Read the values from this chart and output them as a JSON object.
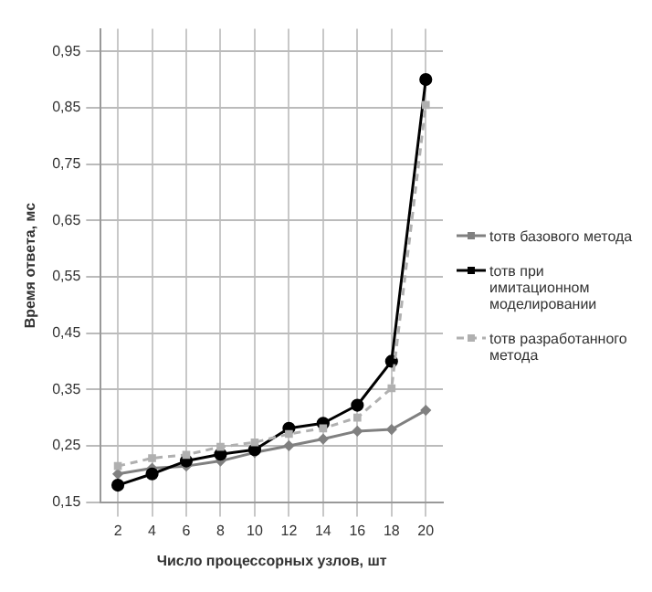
{
  "chart_data": {
    "type": "line",
    "xlabel": "Число процессорных узлов, шт",
    "ylabel": "Время ответа, мс",
    "categories": [
      "2",
      "4",
      "6",
      "8",
      "10",
      "12",
      "14",
      "16",
      "18",
      "20"
    ],
    "series": [
      {
        "name": "tотв базового метода",
        "color": "#808080",
        "marker": "diamond",
        "line_style": "solid",
        "values": [
          0.2,
          0.21,
          0.214,
          0.223,
          0.238,
          0.25,
          0.262,
          0.276,
          0.279,
          0.313
        ]
      },
      {
        "name": "tотв при имитационном моделировании",
        "color": "#000000",
        "marker": "circle",
        "line_style": "solid",
        "values": [
          0.18,
          0.2,
          0.223,
          0.235,
          0.243,
          0.281,
          0.29,
          0.322,
          0.4,
          0.9
        ]
      },
      {
        "name": "tотв разработанного метода",
        "color": "#b0b0b0",
        "marker": "square",
        "line_style": "dashed",
        "values": [
          0.214,
          0.228,
          0.234,
          0.248,
          0.256,
          0.271,
          0.281,
          0.3,
          0.352,
          0.855
        ]
      }
    ],
    "ylim": [
      0.15,
      0.99
    ],
    "yticks": [
      {
        "value": 0.15,
        "label": "0,15"
      },
      {
        "value": 0.25,
        "label": "0,25"
      },
      {
        "value": 0.35,
        "label": "0,35"
      },
      {
        "value": 0.45,
        "label": "0,45"
      },
      {
        "value": 0.55,
        "label": "0,55"
      },
      {
        "value": 0.65,
        "label": "0,65"
      },
      {
        "value": 0.75,
        "label": "0,75"
      },
      {
        "value": 0.85,
        "label": "0,85"
      },
      {
        "value": 0.95,
        "label": "0,95"
      }
    ],
    "grid": true,
    "legend": "right"
  }
}
